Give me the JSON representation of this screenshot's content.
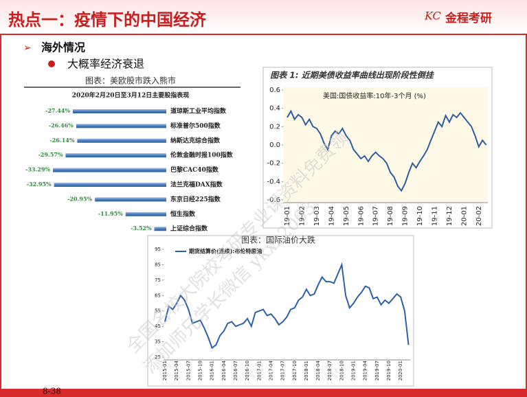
{
  "header": {
    "title": "热点一：疫情下的中国经济",
    "logo": "金程考研"
  },
  "bullets": {
    "level1": "海外情况",
    "level2": "大概率经济衰退"
  },
  "watermark": {
    "line1": "全国名校大院校考研专业课资料免费领",
    "line2": "添加师兄学长微信 ykxz2003"
  },
  "page_number": "8-38",
  "chart_data": [
    {
      "type": "bar",
      "orientation": "horizontal",
      "caption": "图表：美欧股市跌入熊市",
      "title": "2020年2月20日至3月12日主要股指表现",
      "categories": [
        "道琼斯工业平均指数",
        "标准普尔500指数",
        "纳斯达克综合指数",
        "伦敦金融时报100指数",
        "巴黎CAC40指数",
        "法兰克福DAX指数",
        "东京日经225指数",
        "恒生指数",
        "上证综合指数"
      ],
      "values": [
        -27.44,
        -26.46,
        -26.14,
        -29.57,
        -33.29,
        -32.95,
        -20.95,
        -11.95,
        -3.52
      ],
      "value_labels": [
        "-27.44%",
        "-26.46%",
        "-26.14%",
        "-29.57%",
        "-33.29%",
        "-32.95%",
        "-20.95%",
        "-11.95%",
        "-3.52%"
      ],
      "color": "#4a7ebb",
      "label_color": "#2e8b3a"
    },
    {
      "type": "line",
      "caption": "图表 1: 近期美债收益率曲线出现阶段性倒挂",
      "title": "美国:国债收益率:10年-3个月 (%)",
      "categories": [
        "19-01",
        null,
        null,
        null,
        "19-02",
        null,
        null,
        null,
        "19-03",
        null,
        null,
        null,
        "19-04",
        null,
        null,
        null,
        "19-05",
        null,
        null,
        null,
        "19-06",
        null,
        null,
        null,
        "19-07",
        null,
        null,
        null,
        "19-08",
        null,
        null,
        null,
        "19-09",
        null,
        null,
        null,
        "19-10",
        null,
        null,
        null,
        "19-11",
        null,
        null,
        null,
        "19-12",
        null,
        null,
        null,
        "20-01",
        null,
        null,
        null,
        "20-02",
        null,
        null
      ],
      "series": [
        {
          "name": "美国:国债收益率:10年-3个月",
          "color": "#2e5c9e",
          "values": [
            0.3,
            0.37,
            0.28,
            0.33,
            0.3,
            0.22,
            0.28,
            0.2,
            0.18,
            0.12,
            0.02,
            -0.05,
            0.1,
            0.15,
            0.12,
            0.18,
            0.1,
            0.05,
            -0.05,
            -0.1,
            -0.15,
            -0.12,
            -0.18,
            -0.12,
            -0.08,
            -0.12,
            -0.15,
            -0.2,
            -0.3,
            -0.35,
            -0.45,
            -0.5,
            -0.42,
            -0.3,
            -0.2,
            -0.25,
            -0.18,
            -0.12,
            -0.05,
            0.05,
            0.15,
            0.25,
            0.2,
            0.32,
            0.25,
            0.33,
            0.3,
            0.35,
            0.3,
            0.25,
            0.2,
            0.1,
            -0.02,
            0.05,
            0.0
          ]
        }
      ],
      "ylim": [
        -0.6,
        0.6
      ],
      "yticks": [
        -0.6,
        -0.4,
        -0.2,
        {
          "value": 0,
          "label": "0.0"
        },
        0.2,
        0.4,
        0.6
      ],
      "plot_background": "#fdf9e6"
    },
    {
      "type": "line",
      "caption": "图表：国际油价大跌",
      "legend": "top-left",
      "categories": [
        "2015-01",
        null,
        null,
        "2015-04",
        null,
        null,
        "2015-07",
        null,
        null,
        "2015-10",
        null,
        null,
        "2016-01",
        null,
        null,
        "2016-04",
        null,
        null,
        "2016-07",
        null,
        null,
        "2016-10",
        null,
        null,
        "2017-01",
        null,
        null,
        "2017-04",
        null,
        null,
        "2017-07",
        null,
        null,
        "2017-10",
        null,
        null,
        "2018-01",
        null,
        null,
        "2018-04",
        null,
        null,
        "2018-07",
        null,
        null,
        "2018-10",
        null,
        null,
        "2019-01",
        null,
        null,
        "2019-04",
        null,
        null,
        "2019-07",
        null,
        null,
        "2019-10",
        null,
        null,
        "2020-01",
        null,
        null
      ],
      "series": [
        {
          "name": "期货结算价(连续):布伦特原油",
          "color": "#2b5fa8",
          "values": [
            48,
            58,
            56,
            60,
            65,
            62,
            56,
            47,
            48,
            49,
            44,
            38,
            31,
            33,
            39,
            42,
            47,
            48,
            45,
            46,
            47,
            50,
            45,
            54,
            55,
            56,
            52,
            53,
            50,
            46,
            48,
            51,
            56,
            57,
            62,
            64,
            69,
            65,
            66,
            72,
            77,
            74,
            74,
            73,
            79,
            85,
            65,
            57,
            60,
            64,
            67,
            71,
            70,
            63,
            64,
            59,
            62,
            60,
            63,
            66,
            64,
            55,
            33
          ]
        }
      ],
      "ylim": [
        25,
        95
      ],
      "yticks": [
        25,
        35,
        45,
        55,
        65,
        75,
        85,
        95
      ],
      "plot_background": "#ffffff"
    }
  ]
}
